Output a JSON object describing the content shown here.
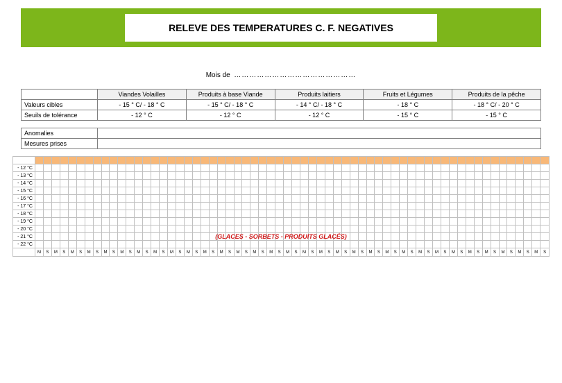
{
  "banner": {
    "title": "RELEVE DES TEMPERATURES C. F. NEGATIVES"
  },
  "mois": {
    "label": "Mois de",
    "dots": "…………………………………………"
  },
  "categories": {
    "headers": [
      "Viandes Volailles",
      "Produits à base Viande",
      "Produits laitiers",
      "Fruits et Légumes",
      "Produits de la pêche"
    ],
    "rows": [
      {
        "label": "Valeurs cibles",
        "values": [
          "- 15 ° C/ - 18 ° C",
          "- 15 ° C/ - 18 ° C",
          "- 14 ° C/ - 18 ° C",
          "- 18 ° C",
          "- 18 ° C/ - 20 ° C"
        ]
      },
      {
        "label": "Seuils de tolérance",
        "values": [
          "- 12 ° C",
          "- 12 ° C",
          "- 12 ° C",
          "- 15 ° C",
          "- 15 ° C"
        ]
      }
    ]
  },
  "anomalies": {
    "rows": [
      {
        "label": "Anomalies",
        "value": ""
      },
      {
        "label": "Mesures prises",
        "value": ""
      }
    ]
  },
  "chart": {
    "y_labels": [
      "- 12 °C",
      "- 13 °C",
      "- 14 °C",
      "- 15 °C",
      "- 16 °C",
      "- 17 °C",
      "- 18 °C",
      "- 19 °C",
      "- 20 °C",
      "- 21 °C",
      "- 22 °C"
    ],
    "cols": 62,
    "dashed_thresholds": [
      1,
      8
    ],
    "axis_cells": [
      "M",
      "S",
      "M",
      "S",
      "M",
      "S",
      "M",
      "S",
      "M",
      "S",
      "M",
      "S",
      "M",
      "S",
      "M",
      "S",
      "M",
      "S",
      "M",
      "S",
      "M",
      "S",
      "M",
      "S",
      "M",
      "S",
      "M",
      "S",
      "M",
      "S",
      "M",
      "S",
      "M",
      "S",
      "M",
      "S",
      "M",
      "S",
      "M",
      "S",
      "M",
      "S",
      "M",
      "S",
      "M",
      "S",
      "M",
      "S",
      "M",
      "S",
      "M",
      "S",
      "M",
      "S",
      "M",
      "S",
      "M",
      "S",
      "M",
      "S",
      "M",
      "S"
    ],
    "overlay": "(GLACES - SORBETS - PRODUITS GLACÉS)",
    "colors": {
      "orange": "#f8b878",
      "grid": "#c0c0c0",
      "dashed": "#c04030",
      "overlay_text": "#d01818"
    }
  }
}
